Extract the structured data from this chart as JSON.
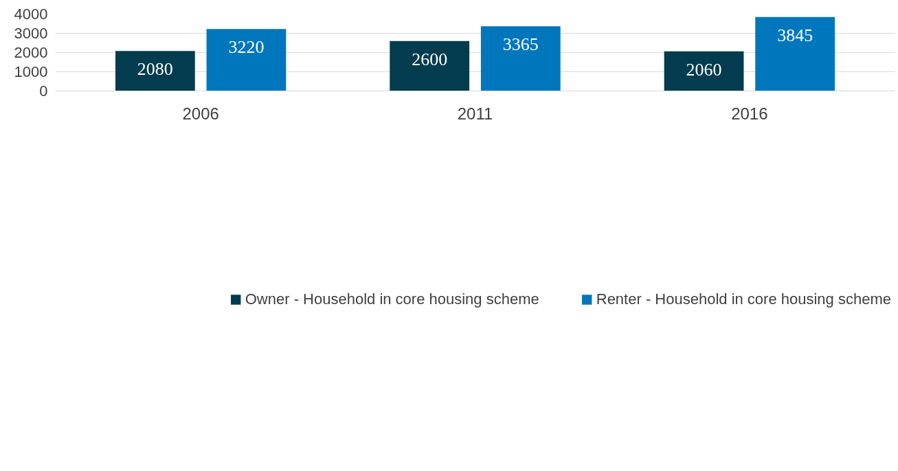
{
  "chart_data": {
    "type": "bar",
    "categories": [
      "2006",
      "2011",
      "2016"
    ],
    "series": [
      {
        "name": "Owner - Household in core housing scheme",
        "color": "#033c4f",
        "values": [
          2080,
          2600,
          2060
        ]
      },
      {
        "name": "Renter - Household in core housing scheme",
        "color": "#0077bd",
        "values": [
          3220,
          3365,
          3845
        ]
      }
    ],
    "ylim": [
      0,
      4000
    ],
    "yticks": [
      0,
      1000,
      2000,
      3000,
      4000
    ],
    "grid": "y",
    "legend": "bottom",
    "data_labels": true
  }
}
